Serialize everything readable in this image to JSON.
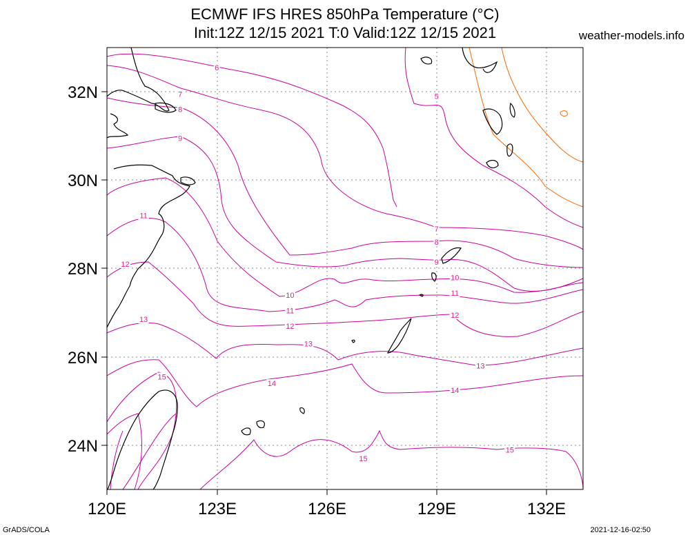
{
  "title_line1": "ECMWF IFS HRES 850hPa Temperature (°C)",
  "title_line2": "Init:12Z 12/15 2021 T:0 Valid:12Z 12/15 2021",
  "credit": "weather-models.info",
  "footer_left": "GrADS/COLA",
  "footer_right": "2021-12-16-02:50",
  "map": {
    "x_ticks": [
      "120E",
      "123E",
      "126E",
      "129E",
      "132E"
    ],
    "y_ticks": [
      "32N",
      "30N",
      "28N",
      "26N",
      "24N"
    ],
    "contour_labels": [
      {
        "text": "6",
        "lon": 123.0,
        "lat": 32.55
      },
      {
        "text": "7",
        "lon": 122.0,
        "lat": 31.95
      },
      {
        "text": "8",
        "lon": 122.0,
        "lat": 31.6
      },
      {
        "text": "9",
        "lon": 122.0,
        "lat": 30.95
      },
      {
        "text": "11",
        "lon": 121.0,
        "lat": 29.2
      },
      {
        "text": "12",
        "lon": 120.5,
        "lat": 28.1
      },
      {
        "text": "13",
        "lon": 121.0,
        "lat": 26.85
      },
      {
        "text": "15",
        "lon": 121.5,
        "lat": 25.55
      },
      {
        "text": "14",
        "lon": 124.5,
        "lat": 25.4
      },
      {
        "text": "13",
        "lon": 125.5,
        "lat": 26.3
      },
      {
        "text": "12",
        "lon": 125.0,
        "lat": 26.7
      },
      {
        "text": "11",
        "lon": 125.0,
        "lat": 27.05
      },
      {
        "text": "10",
        "lon": 125.0,
        "lat": 27.4
      },
      {
        "text": "7",
        "lon": 129.0,
        "lat": 28.9
      },
      {
        "text": "8",
        "lon": 129.0,
        "lat": 28.6
      },
      {
        "text": "9",
        "lon": 129.0,
        "lat": 28.15
      },
      {
        "text": "10",
        "lon": 129.5,
        "lat": 27.8
      },
      {
        "text": "11",
        "lon": 129.5,
        "lat": 27.45
      },
      {
        "text": "12",
        "lon": 129.5,
        "lat": 26.95
      },
      {
        "text": "13",
        "lon": 130.2,
        "lat": 25.8
      },
      {
        "text": "14",
        "lon": 129.5,
        "lat": 25.25
      },
      {
        "text": "15",
        "lon": 127.0,
        "lat": 23.7
      },
      {
        "text": "15",
        "lon": 131.0,
        "lat": 23.9
      },
      {
        "text": "5",
        "lon": 129.0,
        "lat": 31.9
      }
    ],
    "colors": {
      "contour": "#cc0099",
      "label": "#e0208a",
      "warm_contour": "#ff6600",
      "coast": "#000000",
      "grid": "#888888"
    },
    "lon_range": [
      120,
      133
    ],
    "lat_range": [
      23,
      33
    ]
  }
}
